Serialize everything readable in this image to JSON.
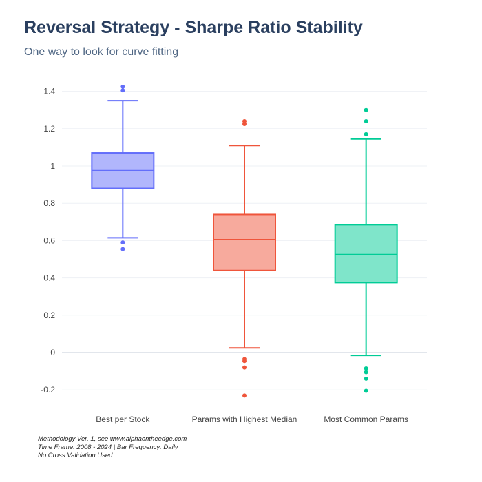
{
  "header": {
    "title": "Reversal Strategy - Sharpe Ratio Stability",
    "subtitle": "One way to look for curve fitting"
  },
  "footnotes": {
    "line1": "Methodology Ver. 1, see www.alphaontheedge.com",
    "line2": "Time Frame: 2008 - 2024 | Bar Frequency: Daily",
    "line3": "No Cross Validation Used"
  },
  "chart_data": {
    "type": "box",
    "title": "Reversal Strategy - Sharpe Ratio Stability",
    "subtitle": "One way to look for curve fitting",
    "xlabel": "",
    "ylabel": "",
    "ylim": [
      -0.3,
      1.45
    ],
    "yticks": [
      -0.2,
      0,
      0.2,
      0.4,
      0.6,
      0.8,
      1,
      1.2,
      1.4
    ],
    "ytick_labels": [
      "-0.2",
      "0",
      "0.2",
      "0.4",
      "0.6",
      "0.8",
      "1",
      "1.2",
      "1.4"
    ],
    "grid": true,
    "categories": [
      "Best per Stock",
      "Params with Highest Median",
      "Most Common Params"
    ],
    "series": [
      {
        "category": "Best per Stock",
        "color": "#636efa",
        "fill": "#b1b6fc",
        "lower_whisker": 0.615,
        "q1": 0.88,
        "median": 0.975,
        "q3": 1.07,
        "upper_whisker": 1.35,
        "outliers": [
          0.555,
          0.59,
          1.405,
          1.425
        ]
      },
      {
        "category": "Params with Highest Median",
        "color": "#ef553b",
        "fill": "#f7aa9d",
        "lower_whisker": 0.025,
        "q1": 0.44,
        "median": 0.605,
        "q3": 0.74,
        "upper_whisker": 1.11,
        "outliers": [
          -0.23,
          -0.08,
          -0.045,
          -0.035,
          1.225,
          1.24
        ]
      },
      {
        "category": "Most Common Params",
        "color": "#00cc96",
        "fill": "#7fe5ca",
        "lower_whisker": -0.015,
        "q1": 0.375,
        "median": 0.525,
        "q3": 0.685,
        "upper_whisker": 1.145,
        "outliers": [
          -0.205,
          -0.14,
          -0.105,
          -0.085,
          1.17,
          1.24,
          1.3
        ]
      }
    ]
  }
}
